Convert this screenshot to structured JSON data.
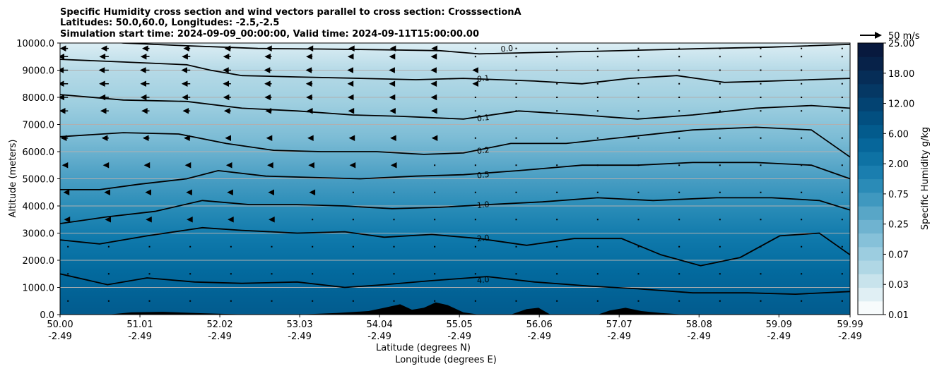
{
  "chart_data": {
    "type": "heatmap",
    "title_lines": [
      "Specific Humidity cross section and wind vectors parallel to cross section: CrosssectionA",
      "Latitudes: 50.0,60.0, Longitudes: -2.5,-2.5",
      "Simulation start time: 2024-09-09_00:00:00, Valid time: 2024-09-11T15:00:00.00"
    ],
    "ylabel": "Altitude (meters)",
    "xlabel_lines": [
      "Latitude (degrees N)",
      "Longitude (degrees E)"
    ],
    "colorbar_label": "Specific Humidity g/kg",
    "ylim": [
      0,
      10000
    ],
    "xlim": [
      50.0,
      59.99
    ],
    "y_ticks": [
      0,
      1000,
      2000,
      3000,
      4000,
      5000,
      6000,
      7000,
      8000,
      9000,
      10000
    ],
    "y_tick_labels": [
      "0.0",
      "1000.0",
      "2000.0",
      "3000.0",
      "4000.0",
      "5000.0",
      "6000.0",
      "7000.0",
      "8000.0",
      "9000.0",
      "10000.0"
    ],
    "x_ticks": [
      {
        "lat": 50.0,
        "lat_label": "50.00",
        "lon_label": "-2.49"
      },
      {
        "lat": 51.01,
        "lat_label": "51.01",
        "lon_label": "-2.49"
      },
      {
        "lat": 52.02,
        "lat_label": "52.02",
        "lon_label": "-2.49"
      },
      {
        "lat": 53.03,
        "lat_label": "53.03",
        "lon_label": "-2.49"
      },
      {
        "lat": 54.04,
        "lat_label": "54.04",
        "lon_label": "-2.49"
      },
      {
        "lat": 55.05,
        "lat_label": "55.05",
        "lon_label": "-2.49"
      },
      {
        "lat": 56.06,
        "lat_label": "56.06",
        "lon_label": "-2.49"
      },
      {
        "lat": 57.07,
        "lat_label": "57.07",
        "lon_label": "-2.49"
      },
      {
        "lat": 58.08,
        "lat_label": "58.08",
        "lon_label": "-2.49"
      },
      {
        "lat": 59.09,
        "lat_label": "59.09",
        "lon_label": "-2.49"
      },
      {
        "lat": 59.99,
        "lat_label": "59.99",
        "lon_label": "-2.49"
      }
    ],
    "grid": "horizontal",
    "colorbar_levels": [
      0.01,
      0.03,
      0.07,
      0.25,
      0.75,
      2.0,
      6.0,
      12.0,
      18.0,
      25.0
    ],
    "colorbar_tick_labels": [
      "0.01",
      "0.03",
      "0.07",
      "0.25",
      "0.75",
      "2.00",
      "6.00",
      "12.00",
      "18.00",
      "25.00"
    ],
    "colorbar_colors": [
      "#f7fbfc",
      "#e0eff4",
      "#c8e3ec",
      "#b0d7e5",
      "#9ccde0",
      "#86c1d9",
      "#6fb3d0",
      "#58a6c7",
      "#3f98bf",
      "#2a8bb7",
      "#1a7eaf",
      "#0e72a4",
      "#06669a",
      "#035b8d",
      "#024f80",
      "#034372",
      "#053864",
      "#062d57",
      "#072249",
      "#08193e"
    ],
    "wind_reference": {
      "value": 50,
      "label": "50 m/s"
    },
    "contours": [
      {
        "label": "0.0",
        "label_at": [
          55.65,
          9800
        ],
        "points": [
          [
            50.0,
            10300
          ],
          [
            50.8,
            10000
          ],
          [
            51.6,
            9900
          ],
          [
            52.5,
            9800
          ],
          [
            53.3,
            9780
          ],
          [
            54.1,
            9750
          ],
          [
            54.8,
            9720
          ],
          [
            55.3,
            9600
          ],
          [
            56.0,
            9650
          ],
          [
            56.8,
            9700
          ],
          [
            57.5,
            9750
          ],
          [
            58.2,
            9800
          ],
          [
            59.0,
            9850
          ],
          [
            59.99,
            9950
          ]
        ]
      },
      {
        "label": "0.1",
        "label_at": [
          55.35,
          8700
        ],
        "points": [
          [
            50.0,
            9400
          ],
          [
            50.8,
            9300
          ],
          [
            51.6,
            9200
          ],
          [
            51.9,
            9000
          ],
          [
            52.3,
            8800
          ],
          [
            53.0,
            8750
          ],
          [
            53.8,
            8700
          ],
          [
            54.5,
            8650
          ],
          [
            55.1,
            8700
          ],
          [
            56.0,
            8600
          ],
          [
            56.6,
            8500
          ],
          [
            57.2,
            8700
          ],
          [
            57.8,
            8800
          ],
          [
            58.4,
            8550
          ],
          [
            59.0,
            8600
          ],
          [
            59.99,
            8700
          ]
        ]
      },
      {
        "label": "0.1",
        "label_at": [
          55.35,
          7250
        ],
        "points": [
          [
            50.0,
            8100
          ],
          [
            50.8,
            7900
          ],
          [
            51.6,
            7850
          ],
          [
            52.3,
            7600
          ],
          [
            53.0,
            7500
          ],
          [
            53.7,
            7350
          ],
          [
            54.3,
            7300
          ],
          [
            55.1,
            7200
          ],
          [
            55.8,
            7500
          ],
          [
            56.6,
            7350
          ],
          [
            57.3,
            7200
          ],
          [
            58.0,
            7350
          ],
          [
            58.8,
            7600
          ],
          [
            59.5,
            7700
          ],
          [
            59.99,
            7600
          ]
        ]
      },
      {
        "label": "0.2",
        "label_at": [
          55.35,
          6050
        ],
        "points": [
          [
            50.0,
            6550
          ],
          [
            50.8,
            6700
          ],
          [
            51.5,
            6650
          ],
          [
            52.1,
            6300
          ],
          [
            52.7,
            6050
          ],
          [
            53.3,
            6000
          ],
          [
            54.0,
            6000
          ],
          [
            54.6,
            5900
          ],
          [
            55.1,
            5950
          ],
          [
            55.7,
            6300
          ],
          [
            56.4,
            6300
          ],
          [
            57.2,
            6550
          ],
          [
            58.0,
            6800
          ],
          [
            58.8,
            6900
          ],
          [
            59.5,
            6800
          ],
          [
            59.99,
            5800
          ]
        ]
      },
      {
        "label": "0.5",
        "label_at": [
          55.35,
          5150
        ],
        "points": [
          [
            50.0,
            4600
          ],
          [
            50.5,
            4600
          ],
          [
            51.0,
            4800
          ],
          [
            51.6,
            5000
          ],
          [
            52.0,
            5300
          ],
          [
            52.6,
            5100
          ],
          [
            53.2,
            5050
          ],
          [
            53.8,
            5000
          ],
          [
            54.5,
            5100
          ],
          [
            55.1,
            5150
          ],
          [
            55.8,
            5300
          ],
          [
            56.6,
            5500
          ],
          [
            57.3,
            5500
          ],
          [
            58.0,
            5600
          ],
          [
            58.8,
            5600
          ],
          [
            59.5,
            5500
          ],
          [
            59.99,
            5000
          ]
        ]
      },
      {
        "label": "1.0",
        "label_at": [
          55.35,
          4050
        ],
        "points": [
          [
            50.0,
            3350
          ],
          [
            50.6,
            3600
          ],
          [
            51.2,
            3800
          ],
          [
            51.8,
            4200
          ],
          [
            52.4,
            4050
          ],
          [
            53.0,
            4050
          ],
          [
            53.6,
            4000
          ],
          [
            54.2,
            3900
          ],
          [
            54.8,
            3950
          ],
          [
            55.4,
            4050
          ],
          [
            56.1,
            4150
          ],
          [
            56.8,
            4300
          ],
          [
            57.5,
            4200
          ],
          [
            58.3,
            4300
          ],
          [
            59.0,
            4300
          ],
          [
            59.6,
            4200
          ],
          [
            59.99,
            3850
          ]
        ]
      },
      {
        "label": "2.0",
        "label_at": [
          55.35,
          2820
        ],
        "points": [
          [
            50.0,
            2750
          ],
          [
            50.5,
            2600
          ],
          [
            51.1,
            2900
          ],
          [
            51.8,
            3200
          ],
          [
            52.3,
            3100
          ],
          [
            53.0,
            3000
          ],
          [
            53.6,
            3050
          ],
          [
            54.1,
            2850
          ],
          [
            54.7,
            2950
          ],
          [
            55.3,
            2800
          ],
          [
            55.9,
            2550
          ],
          [
            56.5,
            2800
          ],
          [
            57.1,
            2800
          ],
          [
            57.6,
            2200
          ],
          [
            58.1,
            1800
          ],
          [
            58.6,
            2100
          ],
          [
            59.1,
            2900
          ],
          [
            59.6,
            3000
          ],
          [
            59.99,
            2200
          ]
        ]
      },
      {
        "label": "4.0",
        "label_at": [
          55.35,
          1280
        ],
        "points": [
          [
            50.0,
            1500
          ],
          [
            50.6,
            1100
          ],
          [
            51.1,
            1350
          ],
          [
            51.7,
            1200
          ],
          [
            52.3,
            1150
          ],
          [
            53.0,
            1200
          ],
          [
            53.6,
            1000
          ],
          [
            54.1,
            1100
          ],
          [
            54.7,
            1250
          ],
          [
            55.4,
            1400
          ],
          [
            56.0,
            1200
          ],
          [
            56.7,
            1050
          ],
          [
            57.3,
            950
          ],
          [
            58.0,
            800
          ],
          [
            58.7,
            800
          ],
          [
            59.3,
            750
          ],
          [
            59.99,
            850
          ]
        ]
      }
    ],
    "terrain": [
      [
        50.0,
        0
      ],
      [
        50.6,
        0
      ],
      [
        50.9,
        80
      ],
      [
        51.3,
        100
      ],
      [
        51.7,
        60
      ],
      [
        52.0,
        30
      ],
      [
        52.4,
        0
      ],
      [
        53.0,
        0
      ],
      [
        53.5,
        60
      ],
      [
        53.9,
        130
      ],
      [
        54.1,
        250
      ],
      [
        54.3,
        380
      ],
      [
        54.45,
        180
      ],
      [
        54.6,
        250
      ],
      [
        54.75,
        450
      ],
      [
        54.9,
        350
      ],
      [
        55.1,
        80
      ],
      [
        55.3,
        0
      ],
      [
        55.7,
        0
      ],
      [
        55.9,
        200
      ],
      [
        56.05,
        250
      ],
      [
        56.2,
        0
      ],
      [
        56.8,
        0
      ],
      [
        56.95,
        150
      ],
      [
        57.15,
        250
      ],
      [
        57.35,
        130
      ],
      [
        57.6,
        60
      ],
      [
        57.9,
        0
      ],
      [
        59.99,
        0
      ]
    ],
    "wind_u_profile": [
      [
        500,
        -2
      ],
      [
        1500,
        -3
      ],
      [
        2500,
        -5
      ],
      [
        3500,
        -8
      ],
      [
        4500,
        -10
      ],
      [
        5500,
        -14
      ],
      [
        6500,
        -18
      ],
      [
        7500,
        -22
      ],
      [
        8000,
        -25
      ],
      [
        8500,
        -26
      ],
      [
        9000,
        -27
      ],
      [
        9500,
        -25
      ],
      [
        9800,
        -20
      ]
    ]
  }
}
